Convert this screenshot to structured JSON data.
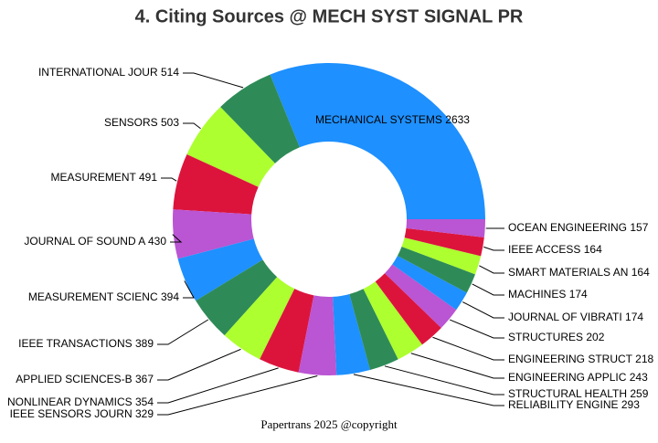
{
  "chart_data": {
    "type": "donut",
    "title": "4. Citing Sources @ MECH SYST SIGNAL PR",
    "categories": [
      "MECHANICAL SYSTEMS",
      "INTERNATIONAL JOUR",
      "SENSORS",
      "MEASUREMENT",
      "JOURNAL OF SOUND A",
      "MEASUREMENT SCIENC",
      "IEEE TRANSACTIONS",
      "APPLIED SCIENCES-B",
      "NONLINEAR DYNAMICS",
      "IEEE SENSORS JOURN",
      "RELIABILITY ENGINE",
      "STRUCTURAL HEALTH",
      "ENGINEERING APPLIC",
      "ENGINEERING STRUCT",
      "STRUCTURES",
      "JOURNAL OF VIBRATI",
      "MACHINES",
      "SMART MATERIALS AN",
      "IEEE ACCESS",
      "OCEAN ENGINEERING"
    ],
    "values": [
      2633,
      514,
      503,
      491,
      430,
      394,
      389,
      367,
      354,
      329,
      293,
      259,
      243,
      218,
      202,
      174,
      174,
      164,
      164,
      157
    ],
    "colors": [
      "#1e90ff",
      "#2e8b57",
      "#adff2f",
      "#dc143c",
      "#ba55d3"
    ],
    "caption": "Papertrans 2025 @copyright"
  }
}
